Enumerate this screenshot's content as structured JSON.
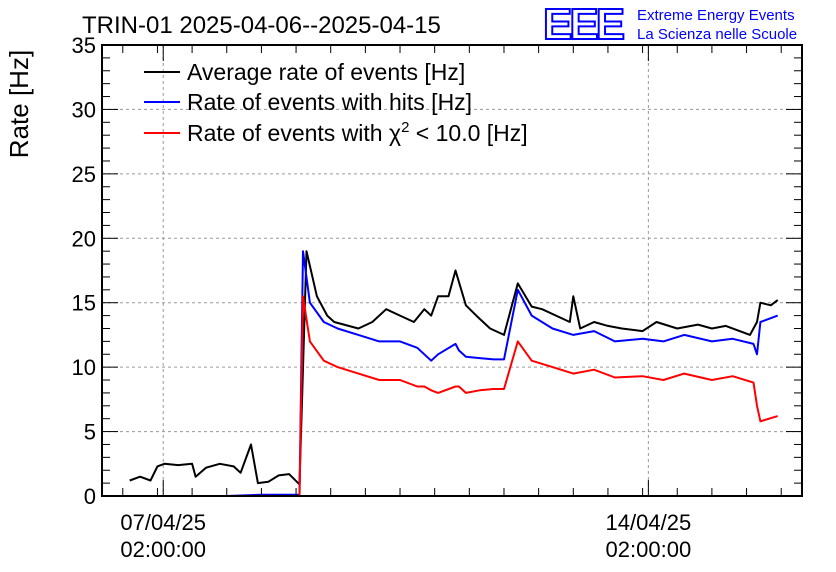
{
  "chart_data": {
    "type": "line",
    "title": "TRIN-01 2025-04-06--2025-04-15",
    "ylabel": "Rate [Hz]",
    "xlabel": "",
    "ylim": [
      0,
      35
    ],
    "xlim_days": [
      6.2,
      16.3
    ],
    "grid": true,
    "legend_position": "top-left",
    "yticks": [
      0,
      5,
      10,
      15,
      20,
      25,
      30,
      35
    ],
    "xticks": [
      {
        "day": 7.0833,
        "line1": "07/04/25",
        "line2": "02:00:00"
      },
      {
        "day": 14.0833,
        "line1": "14/04/25",
        "line2": "02:00:00"
      }
    ],
    "legend": {
      "avg": "Average rate of events [Hz]",
      "hits": "Rate of events with hits [Hz]",
      "chi_prefix": "Rate of events with ",
      "chi_symbol": "χ",
      "chi_sup": "2",
      "chi_suffix": " < 10.0 [Hz]"
    },
    "series": [
      {
        "name": "Average rate of events [Hz]",
        "color": "#000000",
        "x": [
          6.6,
          6.75,
          6.9,
          7.0,
          7.1,
          7.3,
          7.5,
          7.55,
          7.7,
          7.9,
          8.1,
          8.2,
          8.35,
          8.45,
          8.6,
          8.75,
          8.9,
          9.05,
          9.15,
          9.3,
          9.45,
          9.55,
          9.9,
          10.1,
          10.3,
          10.5,
          10.7,
          10.85,
          10.95,
          11.05,
          11.2,
          11.3,
          11.45,
          11.6,
          11.8,
          12.0,
          12.2,
          12.4,
          12.55,
          12.75,
          12.95,
          13.0,
          13.1,
          13.3,
          13.5,
          13.7,
          14.0,
          14.2,
          14.5,
          14.8,
          15.0,
          15.2,
          15.4,
          15.55,
          15.65,
          15.7,
          15.85,
          15.95
        ],
        "y": [
          1.2,
          1.5,
          1.2,
          2.3,
          2.5,
          2.4,
          2.5,
          1.5,
          2.2,
          2.5,
          2.3,
          1.8,
          4.0,
          1.0,
          1.1,
          1.6,
          1.7,
          0.9,
          19.0,
          15.5,
          14.0,
          13.5,
          13.0,
          13.5,
          14.5,
          14.0,
          13.5,
          14.5,
          14.0,
          15.5,
          15.5,
          17.5,
          14.8,
          14.0,
          13.0,
          12.5,
          16.5,
          14.7,
          14.5,
          14.0,
          13.5,
          15.5,
          13.0,
          13.5,
          13.2,
          13.0,
          12.8,
          13.5,
          13.0,
          13.3,
          13.0,
          13.2,
          12.8,
          12.5,
          13.5,
          15.0,
          14.8,
          15.2
        ]
      },
      {
        "name": "Rate of events with hits [Hz]",
        "color": "#0000ff",
        "x": [
          6.6,
          7.0,
          7.5,
          8.0,
          8.5,
          8.9,
          9.0,
          9.05,
          9.1,
          9.2,
          9.4,
          9.6,
          9.9,
          10.2,
          10.5,
          10.75,
          10.85,
          10.95,
          11.05,
          11.3,
          11.35,
          11.45,
          11.65,
          11.85,
          12.0,
          12.2,
          12.4,
          12.7,
          13.0,
          13.3,
          13.6,
          14.0,
          14.3,
          14.6,
          15.0,
          15.3,
          15.6,
          15.65,
          15.7,
          15.95
        ],
        "y": [
          0,
          0,
          0,
          0,
          0.1,
          0.1,
          0.1,
          0.1,
          19.0,
          15.0,
          13.5,
          13.0,
          12.5,
          12.0,
          12.0,
          11.5,
          11.0,
          10.5,
          11.0,
          11.8,
          11.3,
          10.8,
          10.7,
          10.6,
          10.6,
          16.0,
          14.0,
          13.0,
          12.5,
          12.8,
          12.0,
          12.2,
          12.0,
          12.5,
          12.0,
          12.2,
          11.8,
          11.0,
          13.5,
          14.0
        ]
      },
      {
        "name": "Rate of events with χ2 < 10.0 [Hz]",
        "color": "#ff0000",
        "x": [
          6.6,
          7.0,
          7.5,
          8.0,
          8.5,
          9.05,
          9.1,
          9.2,
          9.4,
          9.6,
          9.9,
          10.2,
          10.5,
          10.75,
          10.85,
          10.95,
          11.05,
          11.3,
          11.35,
          11.45,
          11.65,
          11.85,
          12.0,
          12.2,
          12.4,
          12.7,
          13.0,
          13.3,
          13.6,
          14.0,
          14.3,
          14.6,
          15.0,
          15.3,
          15.6,
          15.65,
          15.7,
          15.95
        ],
        "y": [
          0,
          0,
          0,
          0,
          0,
          0,
          15.5,
          12.0,
          10.5,
          10.0,
          9.5,
          9.0,
          9.0,
          8.5,
          8.5,
          8.2,
          8.0,
          8.5,
          8.5,
          8.0,
          8.2,
          8.3,
          8.3,
          12.0,
          10.5,
          10.0,
          9.5,
          9.8,
          9.2,
          9.3,
          9.0,
          9.5,
          9.0,
          9.3,
          8.8,
          7.0,
          5.8,
          6.2
        ]
      }
    ]
  },
  "logo": {
    "mark": "EEE",
    "line1": "Extreme Energy Events",
    "line2": "La Scienza nelle Scuole",
    "color": "#0000ff"
  }
}
